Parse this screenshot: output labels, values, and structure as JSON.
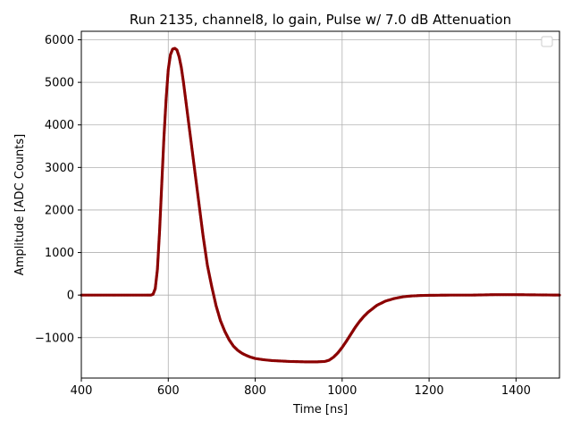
{
  "chart_data": {
    "type": "scatter",
    "title": "Run 2135, channel8, lo gain, Pulse w/ 7.0 dB Attenuation",
    "xlabel": "Time [ns]",
    "ylabel": "Amplitude [ADC Counts]",
    "xlim": [
      400,
      1500
    ],
    "ylim": [
      -1950,
      6200
    ],
    "xticks": [
      400,
      600,
      800,
      1000,
      1200,
      1400
    ],
    "yticks": [
      -1000,
      0,
      1000,
      2000,
      3000,
      4000,
      5000,
      6000
    ],
    "ytick_labels": [
      "−1000",
      "0",
      "1000",
      "2000",
      "3000",
      "4000",
      "5000",
      "6000"
    ],
    "grid": true,
    "legend": "top-right, empty",
    "marker_color": "#8b0000",
    "series": [
      {
        "x": [
          400,
          450,
          500,
          550,
          560,
          565,
          570,
          575,
          580,
          585,
          590,
          595,
          600,
          605,
          610,
          615,
          620,
          625,
          630,
          635,
          640,
          650,
          660,
          670,
          680,
          690,
          700,
          710,
          720,
          730,
          740,
          750,
          760,
          770,
          780,
          790,
          800,
          820,
          840,
          860,
          880,
          900,
          920,
          940,
          960,
          970,
          980,
          990,
          1000,
          1010,
          1020,
          1030,
          1040,
          1050,
          1060,
          1080,
          1100,
          1120,
          1140,
          1160,
          1180,
          1200,
          1250,
          1300,
          1350,
          1400,
          1450,
          1500
        ],
        "y": [
          0,
          0,
          0,
          0,
          0,
          20,
          150,
          600,
          1500,
          2600,
          3700,
          4600,
          5300,
          5650,
          5780,
          5800,
          5760,
          5600,
          5350,
          5000,
          4600,
          3800,
          3000,
          2200,
          1400,
          700,
          200,
          -250,
          -600,
          -850,
          -1050,
          -1200,
          -1300,
          -1370,
          -1420,
          -1460,
          -1490,
          -1520,
          -1540,
          -1550,
          -1560,
          -1565,
          -1570,
          -1570,
          -1560,
          -1530,
          -1460,
          -1360,
          -1230,
          -1080,
          -920,
          -760,
          -620,
          -500,
          -400,
          -240,
          -140,
          -80,
          -40,
          -20,
          -10,
          -5,
          0,
          0,
          10,
          10,
          5,
          0
        ]
      }
    ]
  }
}
